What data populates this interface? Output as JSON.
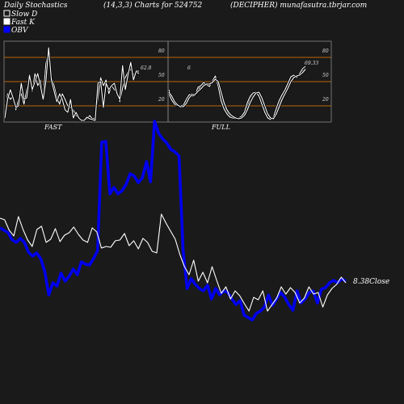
{
  "header": {
    "title": "Daily Stochastics",
    "params": "(14,3,3) Charts for 524752",
    "site": "(DECIPHER) munafasutra.tbrjar.com"
  },
  "legend": [
    {
      "label": "Slow  D",
      "color": "#ffffff"
    },
    {
      "label": "Fast K",
      "color": "#ffffff"
    },
    {
      "label": "OBV",
      "color": "#0000ff"
    }
  ],
  "colors": {
    "background": "#1a1a1a",
    "panel": "#1a1a1a",
    "level_line": "#b8660b",
    "obv": "#0000ee",
    "price": "#ffffff"
  },
  "chart_data": [
    {
      "type": "line",
      "panel": "FAST",
      "title": "FAST",
      "y_ticks": [
        80,
        50,
        20
      ],
      "ylim": [
        0,
        100
      ],
      "level_lines": [
        80,
        50,
        20
      ],
      "annotation": "62.8",
      "series": [
        {
          "values": [
            5,
            35,
            28,
            32,
            15,
            28,
            35,
            22,
            40,
            55,
            38,
            60,
            45,
            52,
            30,
            72,
            88,
            55,
            45,
            30,
            22,
            35,
            28,
            20,
            18,
            15,
            8,
            5,
            3,
            2,
            4,
            8,
            4,
            5,
            30,
            55,
            45,
            52,
            35,
            45,
            40,
            38,
            25,
            42,
            55,
            62,
            65,
            58,
            62,
            60
          ]
        },
        {
          "values": [
            5,
            28,
            40,
            30,
            18,
            20,
            48,
            28,
            30,
            58,
            40,
            50,
            60,
            45,
            28,
            50,
            92,
            52,
            38,
            25,
            35,
            28,
            15,
            12,
            28,
            5,
            12,
            5,
            2,
            2,
            6,
            4,
            3,
            2,
            48,
            50,
            18,
            48,
            40,
            45,
            48,
            35,
            28,
            70,
            40,
            58,
            74,
            52,
            63,
            63
          ]
        }
      ]
    },
    {
      "type": "line",
      "panel": "FULL",
      "title": "FULL",
      "y_ticks": [
        80,
        50,
        20
      ],
      "ylim": [
        0,
        100
      ],
      "level_lines": [
        80,
        50,
        20
      ],
      "annotations": [
        "6",
        "69.33"
      ],
      "series": [
        {
          "values": [
            40,
            30,
            22,
            20,
            18,
            20,
            26,
            34,
            35,
            32,
            40,
            44,
            47,
            48,
            46,
            50,
            55,
            47,
            30,
            18,
            12,
            8,
            6,
            4,
            4,
            6,
            10,
            20,
            30,
            35,
            38,
            35,
            25,
            15,
            6,
            4,
            5,
            14,
            24,
            32,
            38,
            46,
            55,
            57,
            56,
            58,
            63,
            66
          ]
        },
        {
          "values": [
            35,
            27,
            22,
            20,
            20,
            21,
            28,
            34,
            32,
            33,
            43,
            45,
            49,
            46,
            44,
            51,
            57,
            44,
            26,
            16,
            10,
            6,
            5,
            4,
            5,
            7,
            12,
            24,
            32,
            36,
            37,
            32,
            22,
            12,
            5,
            3,
            6,
            17,
            27,
            34,
            40,
            48,
            56,
            58,
            55,
            60,
            66,
            69
          ]
        },
        {
          "values": [
            37,
            32,
            25,
            21,
            19,
            19,
            23,
            30,
            34,
            34,
            38,
            41,
            45,
            47,
            47,
            49,
            53,
            50,
            37,
            24,
            15,
            10,
            7,
            5,
            4,
            5,
            8,
            15,
            24,
            31,
            36,
            37,
            30,
            20,
            10,
            5,
            4,
            10,
            19,
            28,
            35,
            42,
            50,
            55,
            57,
            58,
            61,
            65
          ]
        }
      ]
    },
    {
      "type": "line",
      "panel": "price",
      "annotation": "8.38Close",
      "series": [
        {
          "name": "OBV",
          "color": "#0000ee",
          "values": [
            282,
            285,
            288,
            297,
            300,
            295,
            300,
            312,
            317,
            313,
            320,
            336,
            365,
            350,
            354,
            338,
            348,
            342,
            333,
            340,
            324,
            327,
            328,
            320,
            310,
            176,
            175,
            240,
            232,
            240,
            236,
            228,
            215,
            218,
            226,
            220,
            200,
            225,
            150,
            165,
            172,
            177,
            185,
            188,
            193,
            310,
            357,
            345,
            352,
            357,
            360,
            353,
            370,
            357,
            365,
            360,
            362,
            370,
            377,
            372,
            390,
            393,
            396,
            388,
            385,
            380,
            365,
            378,
            370,
            362,
            368,
            377,
            384,
            360,
            375,
            370,
            362,
            360,
            375,
            358,
            356,
            350,
            347,
            350,
            345,
            348
          ]
        },
        {
          "name": "Close",
          "color": "#ffffff",
          "values": [
            270,
            272,
            285,
            292,
            268,
            284,
            297,
            305,
            284,
            280,
            300,
            296,
            283,
            299,
            291,
            288,
            281,
            290,
            297,
            300,
            282,
            287,
            307,
            305,
            306,
            298,
            297,
            289,
            304,
            298,
            308,
            295,
            300,
            311,
            313,
            265,
            276,
            286,
            296,
            315,
            330,
            340,
            322,
            348,
            337,
            350,
            330,
            347,
            363,
            355,
            370,
            360,
            366,
            376,
            385,
            368,
            371,
            360,
            385,
            377,
            369,
            355,
            364,
            356,
            362,
            375,
            369,
            355,
            364,
            362,
            380,
            365,
            357,
            352,
            343,
            350
          ]
        }
      ],
      "price_label": "8.38"
    }
  ],
  "panel_labels": {
    "fast": "FAST",
    "full": "FULL"
  },
  "fast_ticks": [
    "80",
    "50",
    "20"
  ],
  "full_ticks": [
    "80",
    "50",
    "20"
  ],
  "fast_value": "62.8",
  "full_value_left": "6",
  "full_value_right": "69.33",
  "close_label": "8.38Close"
}
